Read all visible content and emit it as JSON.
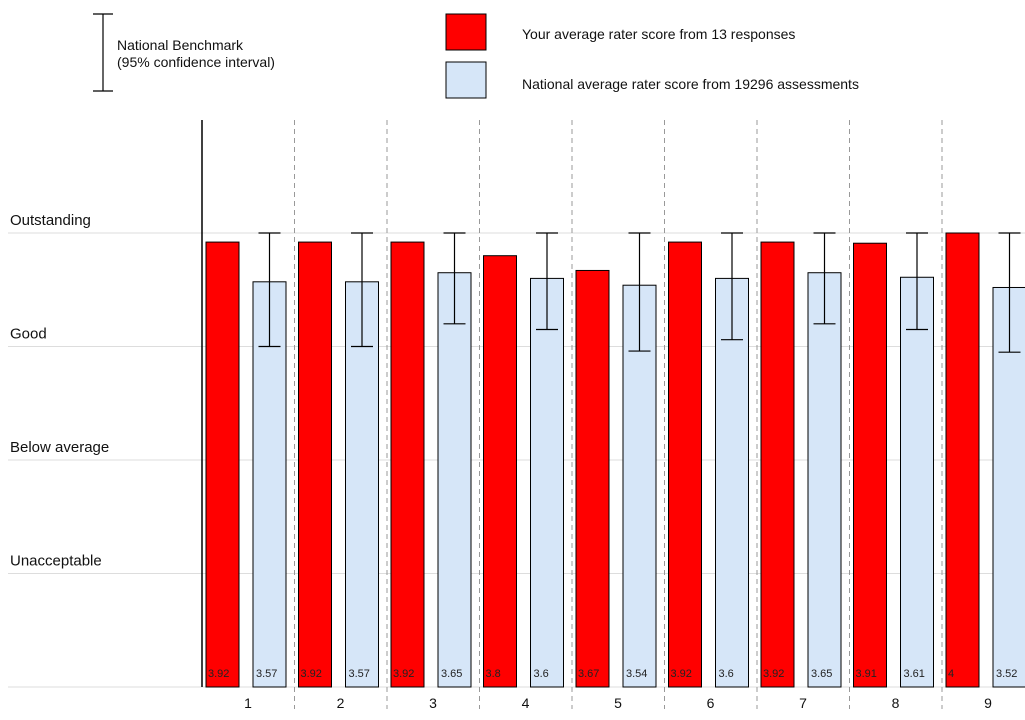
{
  "legend": {
    "benchmark_line1": "National Benchmark",
    "benchmark_line2": "(95% confidence interval)",
    "yours": "Your average rater score from 13 responses",
    "national": "National average rater score from 19296 assessments"
  },
  "colors": {
    "yours": "#ff0000",
    "national": "#d6e6f8",
    "gridline": "#dddddd",
    "divider": "#999999"
  },
  "chart_data": {
    "type": "bar",
    "categories": [
      "1",
      "2",
      "3",
      "4",
      "5",
      "6",
      "7",
      "8",
      "9"
    ],
    "series": [
      {
        "name": "Your average rater score from 13 responses",
        "values": [
          3.92,
          3.92,
          3.92,
          3.8,
          3.67,
          3.92,
          3.92,
          3.91,
          4
        ]
      },
      {
        "name": "National average rater score from 19296 assessments",
        "values": [
          3.57,
          3.57,
          3.65,
          3.6,
          3.54,
          3.6,
          3.65,
          3.61,
          3.52
        ],
        "ci_lower": [
          3.0,
          3.0,
          3.2,
          3.15,
          2.96,
          3.06,
          3.2,
          3.15,
          2.95
        ],
        "ci_upper": [
          4.0,
          4.0,
          4.0,
          4.0,
          4.0,
          4.0,
          4.0,
          4.0,
          4.0
        ]
      }
    ],
    "value_labels": {
      "yours": [
        "3.92",
        "3.92",
        "3.92",
        "3.8",
        "3.67",
        "3.92",
        "3.92",
        "3.91",
        "4"
      ],
      "national": [
        "3.57",
        "3.57",
        "3.65",
        "3.6",
        "3.54",
        "3.6",
        "3.65",
        "3.61",
        "3.52"
      ]
    },
    "rating_levels": [
      {
        "label": "Unacceptable",
        "value": 1
      },
      {
        "label": "Below average",
        "value": 2
      },
      {
        "label": "Good",
        "value": 3
      },
      {
        "label": "Outstanding",
        "value": 4
      }
    ],
    "ylim": [
      0,
      4.5
    ],
    "grid": true,
    "legend_position": "top"
  }
}
